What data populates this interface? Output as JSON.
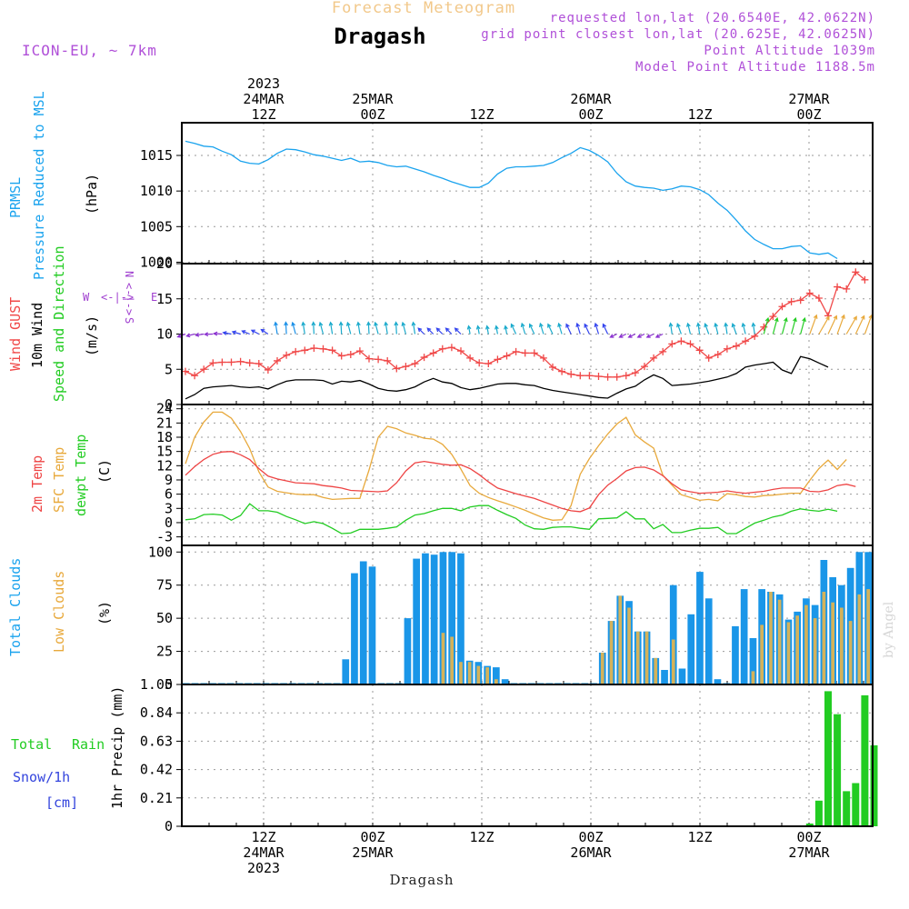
{
  "header": {
    "subtitle": "Forecast Meteogram",
    "title": "Dragash",
    "model": "ICON-EU, ~ 7km",
    "requested": "requested lon,lat (20.6540E, 42.0622N)",
    "grid_point": "grid point closest lon,lat (20.625E, 42.0625N)",
    "point_altitude": "Point Altitude 1039m",
    "model_altitude": "Model Point Altitude 1188.5m"
  },
  "footer": {
    "location": "Dragash",
    "watermark": "by Angel"
  },
  "colors": {
    "pressure": "#1aa3ee",
    "gust": "#f04848",
    "wind": "#000000",
    "dir": "#22cc22",
    "temp": "#ee4444",
    "sfc": "#e8a93c",
    "dewpt": "#22cc22",
    "total_clouds": "#1a96e8",
    "low_clouds": "#d4b25a",
    "rain": "#22cc22",
    "snow": "#3344dd",
    "compass": "#a040d0",
    "header_orange": "#f2c88a",
    "header_purple": "#b050d8"
  },
  "time_axis": {
    "hours": 76,
    "start": "2023-03-24T03Z",
    "ticks": [
      {
        "hour": 9,
        "top": [
          "2023",
          "24MAR",
          "12Z"
        ],
        "bottom": [
          "12Z",
          "24MAR",
          "2023"
        ]
      },
      {
        "hour": 21,
        "top": [
          "25MAR",
          "00Z"
        ],
        "bottom": [
          "00Z",
          "25MAR"
        ]
      },
      {
        "hour": 33,
        "top": [
          "12Z"
        ],
        "bottom": [
          "12Z"
        ]
      },
      {
        "hour": 45,
        "top": [
          "26MAR",
          "00Z"
        ],
        "bottom": [
          "00Z",
          "26MAR"
        ]
      },
      {
        "hour": 57,
        "top": [
          "12Z"
        ],
        "bottom": [
          "12Z"
        ]
      },
      {
        "hour": 69,
        "top": [
          "27MAR",
          "00Z"
        ],
        "bottom": [
          "00Z",
          "27MAR"
        ]
      }
    ]
  },
  "labels": {
    "p1_a": "PRMSL",
    "p1_b": "Pressure Reduced to MSL",
    "p1_unit": "(hPa)",
    "p2_a": "Wind GUST",
    "p2_b": "10m Wind",
    "p2_c": "Speed and Direction",
    "p2_unit": "(m/s)",
    "p2_n": "N",
    "p2_s": "S",
    "p2_w": "W",
    "p2_e": "E",
    "p2_ns": "<-|->",
    "p2_we": "<-|->",
    "p3_a": "2m Temp",
    "p3_b": "SFC Temp",
    "p3_c": "dewpt Temp",
    "p3_unit": "(C)",
    "p4_a": "Total Clouds",
    "p4_b": "Low Clouds",
    "p4_unit": "(%)",
    "p5_a": "Total",
    "p5_b": "Rain",
    "p5_c": "Snow/1h",
    "p5_d": "[cm]",
    "p5_unit": "1hr Precip (mm)"
  },
  "chart_data": [
    {
      "type": "line",
      "title": "PRMSL Pressure Reduced to MSL",
      "ylabel": "(hPa)",
      "ylim": [
        999.8,
        1019.6
      ],
      "yticks": [
        1000,
        1005,
        1010,
        1015
      ],
      "series": [
        {
          "name": "PRMSL",
          "values": [
            1017.0,
            1016.7,
            1016.3,
            1016.2,
            1015.6,
            1015.1,
            1014.2,
            1013.9,
            1013.8,
            1014.4,
            1015.3,
            1015.9,
            1015.8,
            1015.5,
            1015.1,
            1014.9,
            1014.6,
            1014.3,
            1014.6,
            1014.1,
            1014.2,
            1014.0,
            1013.6,
            1013.4,
            1013.5,
            1013.1,
            1012.7,
            1012.2,
            1011.8,
            1011.3,
            1010.9,
            1010.5,
            1010.5,
            1011.1,
            1012.4,
            1013.2,
            1013.4,
            1013.4,
            1013.5,
            1013.6,
            1014.0,
            1014.7,
            1015.3,
            1016.1,
            1015.7,
            1015.0,
            1014.1,
            1012.5,
            1011.3,
            1010.7,
            1010.5,
            1010.4,
            1010.1,
            1010.3,
            1010.7,
            1010.6,
            1010.2,
            1009.5,
            1008.3,
            1007.3,
            1005.9,
            1004.4,
            1003.2,
            1002.5,
            1001.9,
            1001.9,
            1002.2,
            1002.3,
            1001.3,
            1001.1,
            1001.3,
            1000.5
          ]
        }
      ]
    },
    {
      "type": "line",
      "title": "Wind GUST / 10m Wind Speed and Direction",
      "ylabel": "(m/s)",
      "ylim": [
        0,
        20
      ],
      "yticks": [
        0,
        5,
        10,
        15,
        20
      ],
      "series": [
        {
          "name": "Wind GUST",
          "values": [
            4.7,
            4.1,
            5.0,
            5.9,
            6.0,
            6.0,
            6.1,
            5.9,
            5.8,
            4.9,
            6.2,
            7.0,
            7.5,
            7.7,
            8.0,
            7.9,
            7.7,
            6.9,
            7.1,
            7.6,
            6.5,
            6.4,
            6.2,
            5.1,
            5.4,
            5.8,
            6.7,
            7.3,
            7.9,
            8.1,
            7.6,
            6.6,
            5.9,
            5.8,
            6.4,
            6.9,
            7.5,
            7.3,
            7.3,
            6.6,
            5.3,
            4.7,
            4.3,
            4.1,
            4.1,
            4.0,
            3.9,
            3.9,
            4.1,
            4.5,
            5.4,
            6.6,
            7.5,
            8.6,
            9.0,
            8.6,
            7.7,
            6.6,
            7.1,
            7.9,
            8.3,
            9.0,
            9.7,
            11.0,
            12.5,
            13.9,
            14.6,
            14.8,
            15.8,
            15.1,
            12.6,
            16.7,
            16.4,
            18.8,
            17.7
          ]
        },
        {
          "name": "10m Wind",
          "values": [
            0.8,
            1.4,
            2.3,
            2.5,
            2.6,
            2.7,
            2.5,
            2.4,
            2.5,
            2.2,
            2.8,
            3.3,
            3.5,
            3.5,
            3.5,
            3.4,
            2.9,
            3.3,
            3.2,
            3.4,
            2.9,
            2.3,
            2.0,
            1.9,
            2.1,
            2.5,
            3.2,
            3.7,
            3.2,
            3.0,
            2.4,
            2.1,
            2.3,
            2.6,
            2.9,
            3.0,
            3.0,
            2.8,
            2.7,
            2.3,
            2.0,
            1.8,
            1.6,
            1.4,
            1.2,
            1.0,
            0.9,
            1.6,
            2.2,
            2.6,
            3.5,
            4.2,
            3.7,
            2.7,
            2.8,
            2.9,
            3.1,
            3.3,
            3.6,
            3.9,
            4.4,
            5.3,
            5.6,
            5.8,
            6.0,
            4.9,
            4.4,
            6.8,
            6.5,
            5.9,
            5.3
          ]
        }
      ],
      "directions": "10m wind direction arrows along the 10 m/s line"
    },
    {
      "type": "line",
      "title": "2m Temp / SFC Temp / dewpt Temp",
      "ylabel": "(C)",
      "ylim": [
        -4.8,
        24.9
      ],
      "yticks": [
        -3,
        0,
        3,
        6,
        9,
        12,
        15,
        18,
        21,
        24
      ],
      "series": [
        {
          "name": "2m Temp",
          "values": [
            10.0,
            11.8,
            13.3,
            14.4,
            14.9,
            15.0,
            14.3,
            13.3,
            11.4,
            9.8,
            9.2,
            8.8,
            8.4,
            8.3,
            8.2,
            7.8,
            7.6,
            7.3,
            6.8,
            6.7,
            6.6,
            6.5,
            6.7,
            8.4,
            10.9,
            12.6,
            12.9,
            12.6,
            12.3,
            12.1,
            12.2,
            11.4,
            10.1,
            8.6,
            7.3,
            6.7,
            6.1,
            5.6,
            5.1,
            4.4,
            3.7,
            3.0,
            2.5,
            2.3,
            3.1,
            5.9,
            7.9,
            9.3,
            10.9,
            11.6,
            11.7,
            11.1,
            9.9,
            8.2,
            6.9,
            6.5,
            6.2,
            6.3,
            6.4,
            6.7,
            6.4,
            6.2,
            6.4,
            6.6,
            7.0,
            7.3,
            7.3,
            7.3,
            6.6,
            6.5,
            6.9,
            7.8,
            8.1,
            7.6
          ]
        },
        {
          "name": "SFC Temp",
          "values": [
            12.4,
            18.0,
            21.2,
            23.3,
            23.3,
            22.0,
            19.2,
            15.6,
            10.7,
            7.5,
            6.6,
            6.3,
            6.0,
            5.9,
            5.9,
            5.3,
            4.9,
            5.0,
            5.1,
            5.1,
            11.1,
            18.0,
            20.3,
            19.8,
            18.9,
            18.4,
            17.8,
            17.6,
            16.5,
            14.4,
            11.3,
            7.8,
            6.2,
            5.3,
            4.6,
            4.0,
            3.3,
            2.6,
            1.8,
            1.0,
            0.5,
            0.6,
            3.6,
            10.2,
            13.5,
            16.2,
            18.7,
            20.8,
            22.2,
            18.5,
            17.0,
            15.7,
            10.0,
            7.9,
            5.9,
            5.3,
            4.7,
            4.9,
            4.6,
            6.1,
            5.9,
            5.5,
            5.4,
            5.7,
            5.8,
            6.0,
            6.2,
            6.2,
            8.9,
            11.4,
            13.2,
            11.2,
            13.3
          ]
        },
        {
          "name": "dewpt Temp",
          "values": [
            0.6,
            0.8,
            1.7,
            1.8,
            1.6,
            0.5,
            1.5,
            4.0,
            2.5,
            2.5,
            2.2,
            1.3,
            0.6,
            -0.2,
            0.2,
            -0.2,
            -1.2,
            -2.3,
            -2.2,
            -1.4,
            -1.4,
            -1.4,
            -1.2,
            -0.9,
            0.5,
            1.6,
            1.9,
            2.5,
            3.0,
            3.0,
            2.5,
            3.3,
            3.6,
            3.6,
            2.6,
            1.7,
            0.9,
            -0.5,
            -1.3,
            -1.4,
            -1.0,
            -0.9,
            -0.9,
            -1.2,
            -1.4,
            0.8,
            0.9,
            1.0,
            2.3,
            0.8,
            0.8,
            -1.3,
            -0.4,
            -2.1,
            -2.1,
            -1.6,
            -1.2,
            -1.2,
            -1.0,
            -2.3,
            -2.3,
            -1.2,
            -0.1,
            0.5,
            1.2,
            1.6,
            2.4,
            2.9,
            2.6,
            2.4,
            2.8,
            2.4
          ]
        }
      ]
    },
    {
      "type": "bar",
      "title": "Total Clouds / Low Clouds",
      "ylabel": "(%)",
      "ylim": [
        0,
        105
      ],
      "yticks": [
        0,
        25,
        50,
        75,
        100
      ],
      "series": [
        {
          "name": "Total Clouds",
          "values": [
            0,
            0,
            0,
            0,
            0,
            0,
            0,
            0,
            0,
            0,
            0,
            0,
            0,
            0,
            0,
            0,
            0,
            0,
            19,
            84,
            93,
            89,
            0,
            0,
            0,
            50,
            95,
            99,
            98,
            100,
            100,
            99,
            18,
            17,
            14,
            13,
            4,
            0,
            0,
            0,
            0,
            0,
            0,
            0,
            0,
            0,
            0,
            24,
            48,
            67,
            63,
            40,
            40,
            20,
            11,
            75,
            12,
            53,
            85,
            65,
            4,
            1,
            44,
            72,
            35,
            72,
            70,
            68,
            49,
            55,
            65,
            60,
            94,
            81,
            75,
            88,
            100,
            100
          ]
        },
        {
          "name": "Low Clouds",
          "values": [
            0,
            0,
            0,
            0,
            0,
            0,
            0,
            0,
            0,
            0,
            0,
            0,
            0,
            0,
            0,
            0,
            0,
            0,
            0,
            0,
            0,
            0,
            0,
            0,
            0,
            0,
            0,
            0,
            0,
            39,
            36,
            17,
            17,
            14,
            13,
            4,
            0,
            0,
            0,
            0,
            0,
            0,
            0,
            0,
            0,
            0,
            0,
            24,
            48,
            67,
            58,
            40,
            40,
            20,
            0,
            34,
            0,
            0,
            0,
            0,
            0,
            0,
            0,
            0,
            10,
            45,
            70,
            64,
            47,
            52,
            60,
            50,
            70,
            62,
            58,
            48,
            68,
            72
          ]
        }
      ]
    },
    {
      "type": "bar",
      "title": "Total Rain / Snow per 1h",
      "ylabel": "1hr Precip (mm)",
      "ylim": [
        0,
        1.05
      ],
      "yticks": [
        0,
        0.21,
        0.42,
        0.63,
        0.84,
        1.05
      ],
      "series": [
        {
          "name": "Total Rain",
          "values": [
            0,
            0,
            0,
            0,
            0,
            0,
            0,
            0,
            0,
            0,
            0,
            0,
            0,
            0,
            0,
            0,
            0,
            0,
            0,
            0,
            0,
            0,
            0,
            0,
            0,
            0,
            0,
            0,
            0,
            0,
            0,
            0,
            0,
            0,
            0,
            0,
            0,
            0,
            0,
            0,
            0,
            0,
            0,
            0,
            0,
            0,
            0,
            0,
            0,
            0,
            0,
            0,
            0,
            0,
            0,
            0,
            0,
            0,
            0,
            0,
            0,
            0,
            0,
            0,
            0,
            0,
            0,
            0,
            0.02,
            0.19,
            1.0,
            0.83,
            0.26,
            0.32,
            0.97,
            0.6
          ]
        }
      ]
    }
  ]
}
